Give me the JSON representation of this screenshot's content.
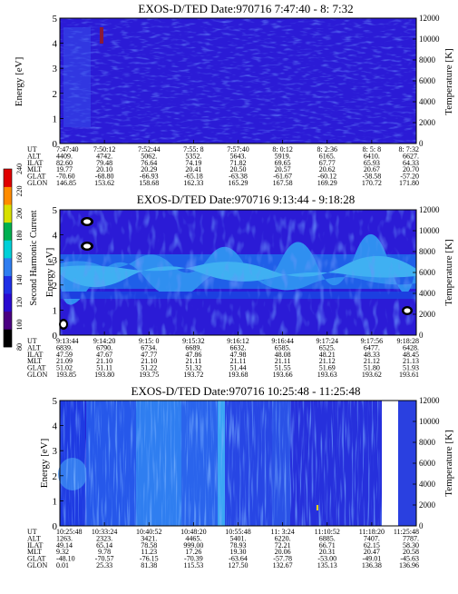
{
  "colorbar": {
    "label": "Second Harmonic Current",
    "ticks": [
      "80",
      "100",
      "120",
      "140",
      "160",
      "180",
      "200",
      "220",
      "240"
    ],
    "colors": [
      "#000000",
      "#4b0082",
      "#2a0ad0",
      "#1f2fe6",
      "#2f7ef0",
      "#00d0d8",
      "#00b050",
      "#d8e000",
      "#ff8c00",
      "#e00000"
    ]
  },
  "chart_data": [
    {
      "type": "heatmap",
      "title": "EXOS-D/TED   Date:970716   7:47:40 - 8: 7:32",
      "ylabel": "Energy [eV]",
      "y2label": "Temperature [K]",
      "ylim": [
        0,
        5
      ],
      "y2lim": [
        0,
        12000
      ],
      "yticks": [
        "0",
        "1",
        "2",
        "3",
        "4",
        "5"
      ],
      "y2ticks": [
        "0",
        "2000",
        "4000",
        "6000",
        "8000",
        "10000",
        "12000"
      ],
      "ephemeris": {
        "labels": [
          "UT",
          "ALT",
          "ILAT",
          "MLT",
          "GLAT",
          "GLON"
        ],
        "columns": [
          [
            "7:47:40",
            "4409.",
            "82.60",
            "19.77",
            "-70.60",
            "146.85"
          ],
          [
            "7:50:12",
            "4742.",
            "79.48",
            "20.10",
            "-68.80",
            "153.62"
          ],
          [
            "7:52:44",
            "5062.",
            "76.64",
            "20.29",
            "-66.93",
            "158.68"
          ],
          [
            "7:55: 8",
            "5352.",
            "74.19",
            "20.41",
            "-65.18",
            "162.33"
          ],
          [
            "7:57:40",
            "5643.",
            "71.82",
            "20.50",
            "-63.38",
            "165.29"
          ],
          [
            "8: 0:12",
            "5919.",
            "69.65",
            "20.57",
            "-61.67",
            "167.58"
          ],
          [
            "8: 2:36",
            "6165.",
            "67.77",
            "20.62",
            "-60.12",
            "169.29"
          ],
          [
            "8: 5: 8",
            "6410.",
            "65.93",
            "20.67",
            "-58.58",
            "170.72"
          ],
          [
            "8: 7:32",
            "6627.",
            "64.33",
            "20.70",
            "-57.20",
            "171.80"
          ]
        ]
      }
    },
    {
      "type": "heatmap",
      "title": "EXOS-D/TED   Date:970716   9:13:44 - 9:18:28",
      "ylabel": "Energy [eV]",
      "y2label": "Temperature [K]",
      "ylim": [
        0,
        5
      ],
      "y2lim": [
        0,
        12000
      ],
      "yticks": [
        "0",
        "1",
        "2",
        "3",
        "4",
        "5"
      ],
      "y2ticks": [
        "0",
        "2000",
        "4000",
        "6000",
        "8000",
        "10000",
        "12000"
      ],
      "ephemeris": {
        "labels": [
          "UT",
          "ALT",
          "ILAT",
          "MLT",
          "GLAT",
          "GLON"
        ],
        "columns": [
          [
            "9:13:44",
            "6839.",
            "47.59",
            "21.09",
            "51.02",
            "193.85"
          ],
          [
            "9:14:20",
            "6790.",
            "47.67",
            "21.10",
            "51.11",
            "193.80"
          ],
          [
            "9:15: 0",
            "6734.",
            "47.77",
            "21.10",
            "51.22",
            "193.75"
          ],
          [
            "9:15:32",
            "6689.",
            "47.86",
            "21.11",
            "51.32",
            "193.72"
          ],
          [
            "9:16:12",
            "6632.",
            "47.98",
            "21.11",
            "51.44",
            "193.68"
          ],
          [
            "9:16:44",
            "6585.",
            "48.08",
            "21.11",
            "51.55",
            "193.66"
          ],
          [
            "9:17:24",
            "6525.",
            "48.21",
            "21.12",
            "51.69",
            "193.63"
          ],
          [
            "9:17:56",
            "6477.",
            "48.33",
            "21.12",
            "51.80",
            "193.62"
          ],
          [
            "9:18:28",
            "6428.",
            "48.45",
            "21.13",
            "51.93",
            "193.61"
          ]
        ]
      }
    },
    {
      "type": "heatmap",
      "title": "EXOS-D/TED   Date:970716   10:25:48 - 11:25:48",
      "ylabel": "Energy [eV]",
      "y2label": "Temperature [K]",
      "ylim": [
        0,
        5
      ],
      "y2lim": [
        0,
        12000
      ],
      "yticks": [
        "0",
        "1",
        "2",
        "3",
        "4",
        "5"
      ],
      "y2ticks": [
        "0",
        "2000",
        "4000",
        "6000",
        "8000",
        "10000",
        "12000"
      ],
      "ephemeris": {
        "labels": [
          "UT",
          "ALT",
          "ILAT",
          "MLT",
          "GLAT",
          "GLON"
        ],
        "columns": [
          [
            "10:25:48",
            "1263.",
            "49.14",
            "9.32",
            "-48.10",
            "0.01"
          ],
          [
            "10:33:24",
            "2323.",
            "65.14",
            "9.78",
            "-70.57",
            "25.33"
          ],
          [
            "10:40:52",
            "3421.",
            "78.58",
            "11.23",
            "-76.15",
            "81.38"
          ],
          [
            "10:48:20",
            "4465.",
            "999.00",
            "17.26",
            "-70.39",
            "115.53"
          ],
          [
            "10:55:48",
            "5401.",
            "78.93",
            "19.30",
            "-63.64",
            "127.50"
          ],
          [
            "11: 3:24",
            "6220.",
            "72.21",
            "20.06",
            "-57.78",
            "132.67"
          ],
          [
            "11:10:52",
            "6885.",
            "66.71",
            "20.31",
            "-53.00",
            "135.13"
          ],
          [
            "11:18:20",
            "7407.",
            "62.15",
            "20.47",
            "-49.01",
            "136.38"
          ],
          [
            "11:25:48",
            "7787.",
            "58.30",
            "20.58",
            "-45.63",
            "136.96"
          ]
        ]
      }
    }
  ]
}
